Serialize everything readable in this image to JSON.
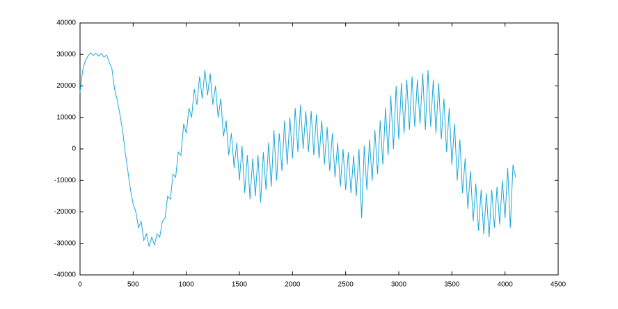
{
  "chart_data": {
    "type": "line",
    "x": [
      0,
      25,
      50,
      75,
      100,
      125,
      150,
      175,
      200,
      225,
      250,
      275,
      300,
      325,
      350,
      375,
      400,
      425,
      450,
      475,
      500,
      525,
      550,
      575,
      600,
      625,
      650,
      675,
      700,
      725,
      750,
      775,
      800,
      825,
      850,
      875,
      900,
      925,
      950,
      975,
      1000,
      1025,
      1050,
      1075,
      1100,
      1125,
      1150,
      1175,
      1200,
      1225,
      1250,
      1275,
      1300,
      1325,
      1350,
      1375,
      1400,
      1425,
      1450,
      1475,
      1500,
      1525,
      1550,
      1575,
      1600,
      1625,
      1650,
      1675,
      1700,
      1725,
      1750,
      1775,
      1800,
      1825,
      1850,
      1875,
      1900,
      1925,
      1950,
      1975,
      2000,
      2025,
      2050,
      2075,
      2100,
      2125,
      2150,
      2175,
      2200,
      2225,
      2250,
      2275,
      2300,
      2325,
      2350,
      2375,
      2400,
      2425,
      2450,
      2475,
      2500,
      2525,
      2550,
      2575,
      2600,
      2625,
      2650,
      2675,
      2700,
      2725,
      2750,
      2775,
      2800,
      2825,
      2850,
      2875,
      2900,
      2925,
      2950,
      2975,
      3000,
      3025,
      3050,
      3075,
      3100,
      3125,
      3150,
      3175,
      3200,
      3225,
      3250,
      3275,
      3300,
      3325,
      3350,
      3375,
      3400,
      3425,
      3450,
      3475,
      3500,
      3525,
      3550,
      3575,
      3600,
      3625,
      3650,
      3675,
      3700,
      3725,
      3750,
      3775,
      3800,
      3825,
      3850,
      3875,
      3900,
      3925,
      3950,
      3975,
      4000,
      4025,
      4050,
      4075,
      4100
    ],
    "series": [
      {
        "color": "#1aa7d9",
        "values": [
          18000,
          25000,
          28000,
          29500,
          30500,
          29700,
          30400,
          29500,
          30300,
          29200,
          29800,
          27500,
          25500,
          19000,
          15500,
          11000,
          6000,
          -1000,
          -7000,
          -13000,
          -17500,
          -20000,
          -25000,
          -23000,
          -29000,
          -27000,
          -31000,
          -28000,
          -30500,
          -27000,
          -28000,
          -23000,
          -22000,
          -15000,
          -16000,
          -8000,
          -9000,
          -1000,
          -2000,
          8000,
          5000,
          13000,
          10000,
          19000,
          14000,
          23000,
          16000,
          25000,
          17000,
          24000,
          14000,
          20000,
          10000,
          16000,
          4000,
          9000,
          -2000,
          5000,
          -6000,
          2000,
          -10000,
          1000,
          -14000,
          -2000,
          -16000,
          -3000,
          -15000,
          -2000,
          -17000,
          -1000,
          -13000,
          2000,
          -12000,
          6000,
          -10000,
          5000,
          -7000,
          9000,
          -5000,
          10000,
          -3000,
          13000,
          -1000,
          14000,
          0,
          12000,
          -1000,
          12000,
          -2000,
          11000,
          -3000,
          9000,
          -5000,
          7000,
          -7000,
          5000,
          -9000,
          2000,
          -12000,
          0,
          -13000,
          -1000,
          -14000,
          -2000,
          -15000,
          0,
          -22000,
          1000,
          -13000,
          3000,
          -10000,
          6000,
          -8000,
          9000,
          -5000,
          13000,
          -2000,
          17000,
          0,
          20000,
          3000,
          21000,
          5000,
          22000,
          6000,
          23000,
          7000,
          22000,
          8000,
          24000,
          6000,
          25000,
          7000,
          22000,
          5000,
          21000,
          3000,
          16000,
          -1000,
          13000,
          -5000,
          8000,
          -10000,
          3000,
          -14000,
          -3000,
          -19000,
          -7000,
          -23000,
          -11000,
          -26000,
          -13000,
          -27000,
          -14000,
          -28000,
          -13000,
          -25000,
          -12000,
          -24000,
          -10000,
          -22000,
          -6000,
          -25000,
          -5000,
          -9000
        ]
      }
    ],
    "xlim": [
      0,
      4500
    ],
    "xticks": [
      0,
      500,
      1000,
      1500,
      2000,
      2500,
      3000,
      3500,
      4000,
      4500
    ],
    "ylim": [
      -40000,
      40000
    ],
    "yticks": [
      -40000,
      -30000,
      -20000,
      -10000,
      0,
      10000,
      20000,
      30000,
      40000
    ]
  }
}
